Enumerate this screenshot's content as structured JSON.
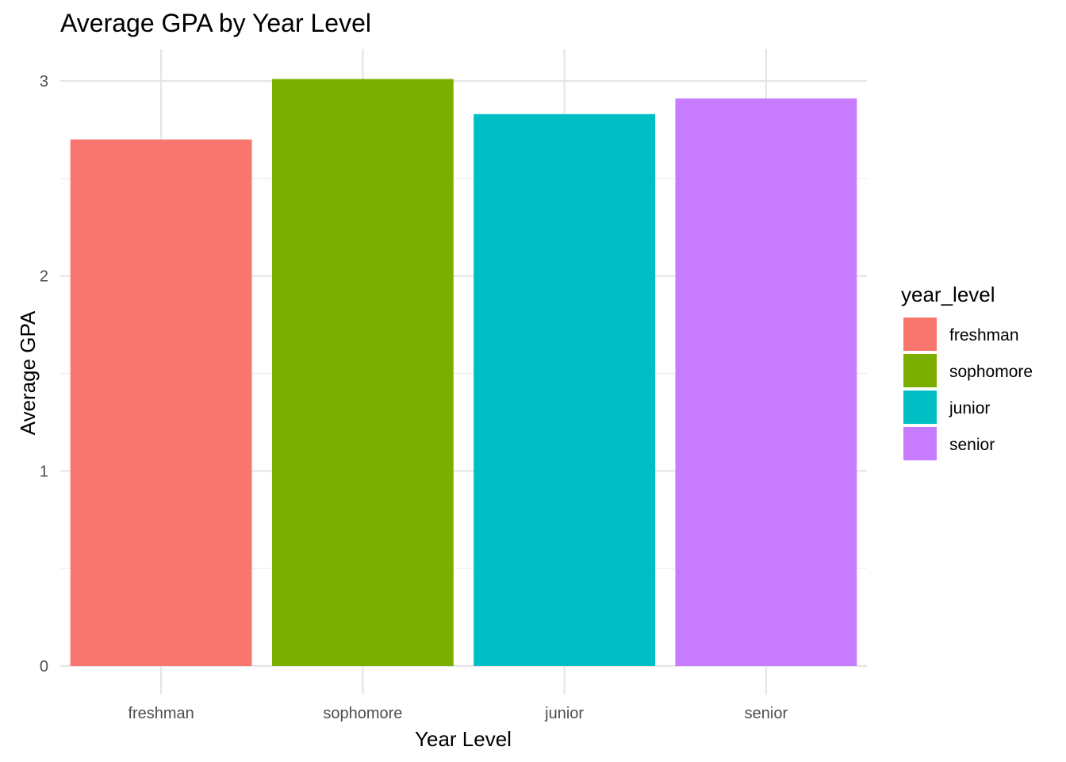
{
  "chart_data": {
    "type": "bar",
    "title": "Average GPA by Year Level",
    "xlabel": "Year Level",
    "ylabel": "Average GPA",
    "categories": [
      "freshman",
      "sophomore",
      "junior",
      "senior"
    ],
    "values": [
      2.7,
      3.01,
      2.83,
      2.91
    ],
    "colors": [
      "#F8766D",
      "#7CAE00",
      "#00BFC4",
      "#C77CFF"
    ],
    "ylim": [
      0,
      3.1
    ],
    "yticks": [
      0,
      1,
      2,
      3
    ],
    "grid": true,
    "legend": {
      "title": "year_level",
      "placement": "right",
      "items": [
        "freshman",
        "sophomore",
        "junior",
        "senior"
      ]
    }
  }
}
